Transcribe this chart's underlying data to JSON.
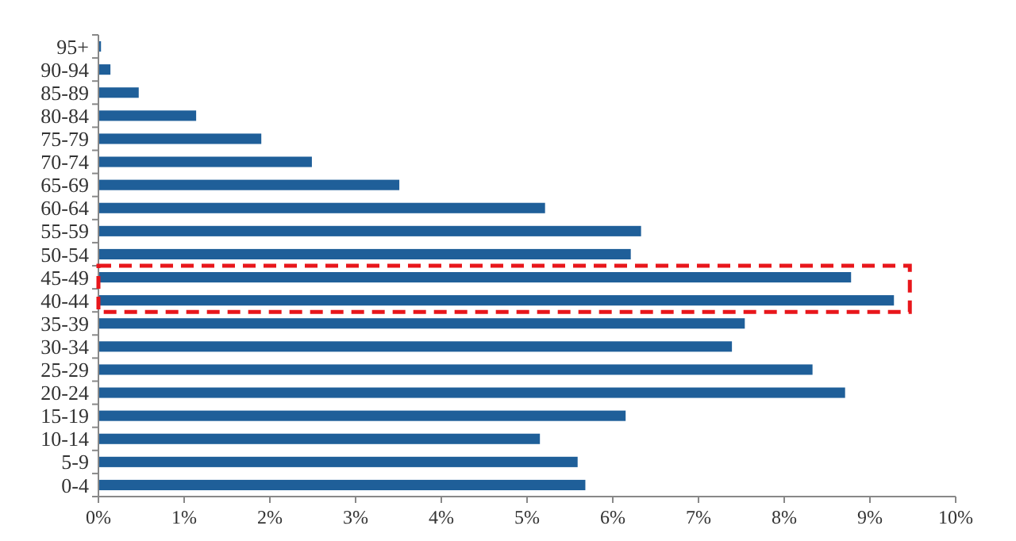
{
  "chart_data": {
    "type": "bar",
    "orientation": "horizontal",
    "categories": [
      "95+",
      "90-94",
      "85-89",
      "80-84",
      "75-79",
      "70-74",
      "65-69",
      "60-64",
      "55-59",
      "50-54",
      "45-49",
      "40-44",
      "35-39",
      "30-34",
      "25-29",
      "20-24",
      "15-19",
      "10-14",
      "5-9",
      "0-4"
    ],
    "values": [
      0.03,
      0.14,
      0.47,
      1.14,
      1.9,
      2.49,
      3.51,
      5.21,
      6.33,
      6.21,
      8.78,
      9.28,
      7.54,
      7.39,
      8.33,
      8.71,
      6.15,
      5.15,
      5.59,
      5.68
    ],
    "color": "#1f5f99",
    "xlim": [
      0,
      10
    ],
    "xticks": [
      {
        "value": 0,
        "label": "0%"
      },
      {
        "value": 1,
        "label": "1%"
      },
      {
        "value": 2,
        "label": "2%"
      },
      {
        "value": 3,
        "label": "3%"
      },
      {
        "value": 4,
        "label": "4%"
      },
      {
        "value": 5,
        "label": "5%"
      },
      {
        "value": 6,
        "label": "6%"
      },
      {
        "value": 7,
        "label": "7%"
      },
      {
        "value": 8,
        "label": "8%"
      },
      {
        "value": 9,
        "label": "9%"
      },
      {
        "value": 10,
        "label": "10%"
      }
    ],
    "grid": false
  }
}
